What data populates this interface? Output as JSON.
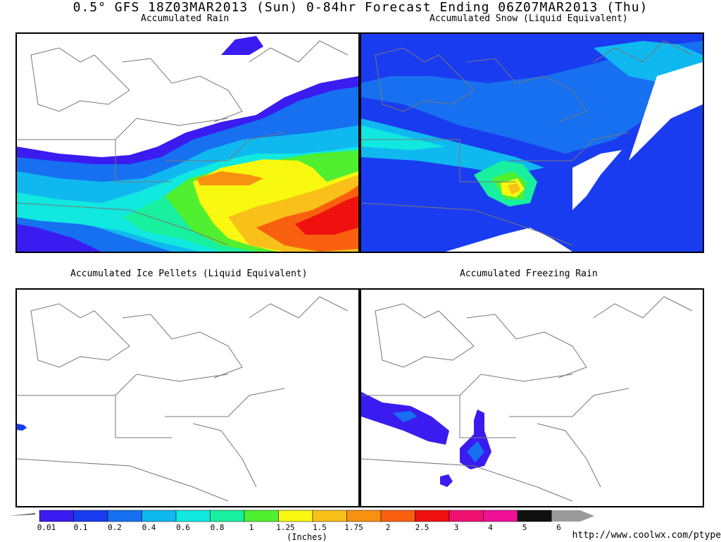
{
  "header": {
    "title": "0.5° GFS 18Z03MAR2013 (Sun) 0-84hr Forecast Ending 06Z07MAR2013 (Thu)"
  },
  "panels": [
    {
      "id": "rain",
      "label": "Accumulated Rain"
    },
    {
      "id": "snow",
      "label": "Accumulated Snow (Liquid Equivalent)"
    },
    {
      "id": "ice",
      "label": "Accumulated Ice Pellets (Liquid Equivalent)"
    },
    {
      "id": "frz",
      "label": "Accumulated Freezing Rain"
    }
  ],
  "legend": {
    "units": "(Inches)",
    "ticks": [
      "0.01",
      "0.1",
      "0.2",
      "0.4",
      "0.6",
      "0.8",
      "1",
      "1.25",
      "1.5",
      "1.75",
      "2",
      "2.5",
      "3",
      "4",
      "5",
      "6"
    ],
    "colors": [
      "#3a1cf0",
      "#1a3cf0",
      "#1670f0",
      "#10b8f0",
      "#10e8e0",
      "#18f0a0",
      "#50f030",
      "#f8f810",
      "#f8c018",
      "#f89010",
      "#f86010",
      "#f01010",
      "#f01070",
      "#f01098",
      "#101010",
      "#9a9a9a"
    ]
  },
  "footer": {
    "url": "http://www.coolwx.com/ptype"
  }
}
